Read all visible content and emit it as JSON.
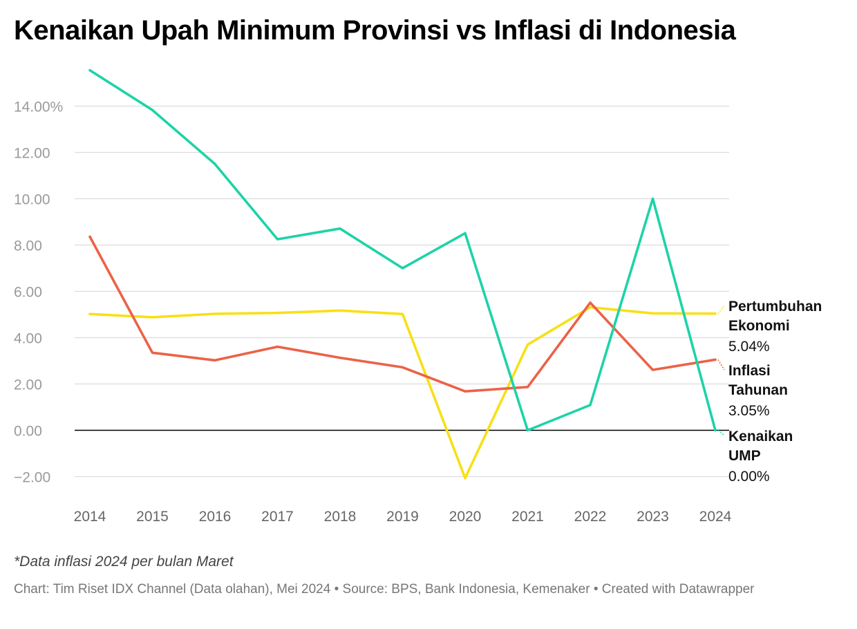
{
  "title": "Kenaikan Upah Minimum Provinsi vs Inflasi di Indonesia",
  "note": "*Data inflasi 2024 per bulan Maret",
  "credit": "Chart: Tim Riset IDX Channel (Data olahan), Mei 2024 • Source: BPS, Bank Indonesia, Kemenaker • Created with Datawrapper",
  "chart_data": {
    "type": "line",
    "x": [
      2014,
      2015,
      2016,
      2017,
      2018,
      2019,
      2020,
      2021,
      2022,
      2023,
      2024
    ],
    "ylim": [
      -2.9,
      15.6
    ],
    "yticks": [
      -2,
      0,
      2,
      4,
      6,
      8,
      10,
      12,
      14
    ],
    "ytick_labels": [
      "−2.00",
      "0.00",
      "2.00",
      "4.00",
      "6.00",
      "8.00",
      "10.00",
      "12.00",
      "14.00%"
    ],
    "grid": true,
    "legend": "direct labels at right end of lines",
    "series": [
      {
        "key": "ump",
        "label_lines": [
          "Kenaikan",
          "UMP"
        ],
        "end_label": "0.00%",
        "color": "#1dd3a7",
        "values": [
          15.55,
          13.83,
          11.5,
          8.25,
          8.71,
          7.0,
          8.51,
          0.0,
          1.09,
          10.0,
          0.0
        ]
      },
      {
        "key": "inflasi",
        "label_lines": [
          "Inflasi",
          "Tahunan"
        ],
        "end_label": "3.05%",
        "color": "#eb6248",
        "values": [
          8.36,
          3.35,
          3.02,
          3.61,
          3.13,
          2.72,
          1.68,
          1.87,
          5.51,
          2.61,
          3.05
        ]
      },
      {
        "key": "pertumbuhan",
        "label_lines": [
          "Pertumbuhan",
          "Ekonomi"
        ],
        "end_label": "5.04%",
        "color": "#f7e017",
        "values": [
          5.02,
          4.88,
          5.03,
          5.07,
          5.17,
          5.02,
          -2.07,
          3.7,
          5.31,
          5.05,
          5.04
        ]
      }
    ]
  }
}
